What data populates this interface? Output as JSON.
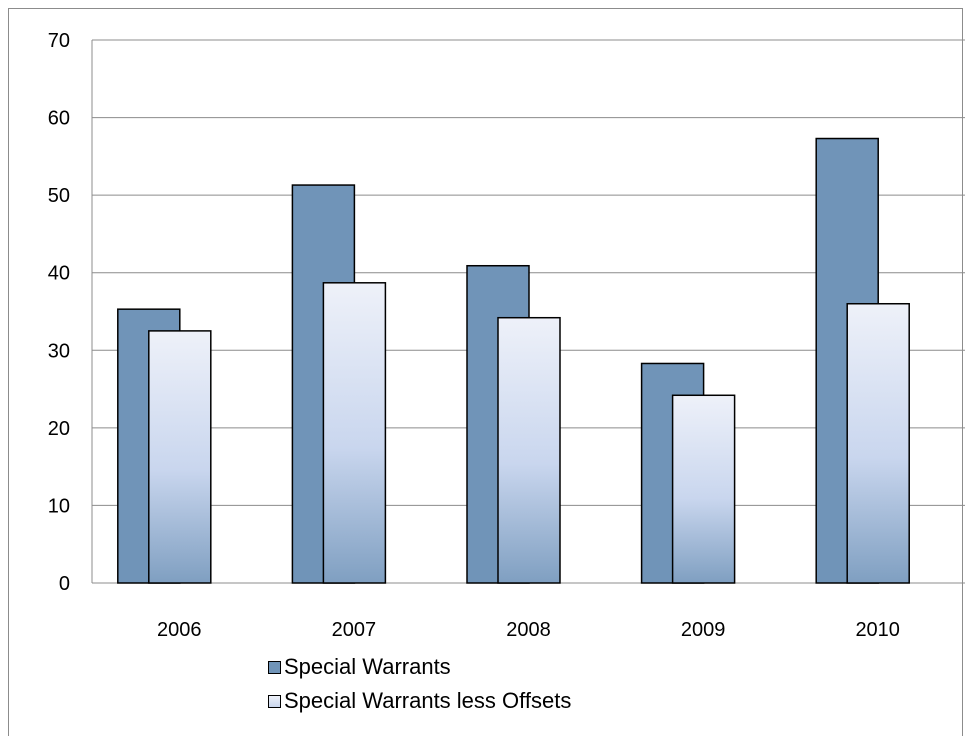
{
  "chart_data": {
    "type": "bar",
    "categories": [
      "2006",
      "2007",
      "2008",
      "2009",
      "2010"
    ],
    "series": [
      {
        "name": "Special Warrants",
        "values": [
          35.3,
          51.3,
          40.9,
          28.3,
          57.3
        ],
        "color": "#7094b8"
      },
      {
        "name": "Special Warrants less Offsets",
        "values": [
          32.5,
          38.7,
          34.2,
          24.2,
          36.0
        ],
        "color": "#d4ddf0"
      }
    ],
    "title": "",
    "xlabel": "",
    "ylabel": "",
    "ylim": [
      0,
      70
    ],
    "yticks": [
      0,
      10,
      20,
      30,
      40,
      50,
      60,
      70
    ],
    "grid": true,
    "legend_position": "bottom"
  }
}
